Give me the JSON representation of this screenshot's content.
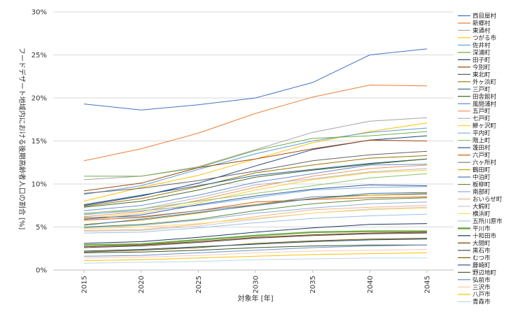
{
  "chart_data": {
    "type": "line",
    "title": "",
    "xlabel": "対象年 [年]",
    "ylabel": "フードデザート地域内における後期高齢者人口の割合 [%]",
    "x": [
      "2015",
      "2020",
      "2025",
      "2030",
      "2035",
      "2040",
      "2045"
    ],
    "ylim": [
      0,
      30
    ],
    "yticks": [
      "0%",
      "5%",
      "10%",
      "15%",
      "20%",
      "25%",
      "30%"
    ],
    "grid": "horizontal",
    "legend_position": "right",
    "series": [
      {
        "name": "西目屋村",
        "color": "#4472c4",
        "values": [
          19.3,
          18.6,
          19.2,
          20.0,
          21.8,
          25.0,
          25.7
        ]
      },
      {
        "name": "新郷村",
        "color": "#ed7d31",
        "values": [
          12.7,
          14.1,
          15.9,
          18.2,
          20.1,
          21.5,
          21.4
        ]
      },
      {
        "name": "東通村",
        "color": "#a5a5a5",
        "values": [
          10.5,
          10.9,
          12.0,
          14.0,
          16.0,
          17.3,
          17.7
        ]
      },
      {
        "name": "つがる市",
        "color": "#ffc000",
        "values": [
          8.0,
          9.6,
          11.0,
          12.9,
          14.8,
          16.1,
          17.1
        ]
      },
      {
        "name": "佐井村",
        "color": "#5b9bd5",
        "values": [
          8.8,
          9.8,
          11.7,
          13.5,
          15.0,
          16.0,
          16.5
        ]
      },
      {
        "name": "深浦町",
        "color": "#70ad47",
        "values": [
          10.9,
          10.9,
          11.9,
          13.9,
          15.3,
          15.6,
          16.1
        ]
      },
      {
        "name": "田子町",
        "color": "#264478",
        "values": [
          7.5,
          8.6,
          10.1,
          12.1,
          14.0,
          15.1,
          15.6
        ]
      },
      {
        "name": "今別町",
        "color": "#9e480e",
        "values": [
          9.2,
          10.1,
          11.9,
          12.9,
          14.1,
          15.1,
          15.0
        ]
      },
      {
        "name": "東北町",
        "color": "#636363",
        "values": [
          8.9,
          9.5,
          10.4,
          11.5,
          12.7,
          13.4,
          13.8
        ]
      },
      {
        "name": "外ヶ浜町",
        "color": "#997300",
        "values": [
          7.4,
          8.3,
          9.7,
          11.3,
          12.2,
          13.0,
          13.3
        ]
      },
      {
        "name": "三戸町",
        "color": "#255e91",
        "values": [
          7.6,
          8.7,
          9.8,
          11.0,
          11.7,
          12.4,
          12.9
        ]
      },
      {
        "name": "田舎館村",
        "color": "#43682b",
        "values": [
          7.3,
          8.0,
          9.3,
          10.8,
          11.6,
          12.3,
          12.9
        ]
      },
      {
        "name": "風間浦村",
        "color": "#698ed0",
        "values": [
          6.9,
          7.5,
          8.7,
          10.2,
          11.2,
          12.2,
          12.3
        ]
      },
      {
        "name": "五戸町",
        "color": "#f1975a",
        "values": [
          6.2,
          6.8,
          8.1,
          9.6,
          10.9,
          11.8,
          12.2
        ]
      },
      {
        "name": "七戸町",
        "color": "#b7b7b7",
        "values": [
          6.4,
          7.1,
          8.4,
          9.9,
          10.6,
          11.4,
          11.8
        ]
      },
      {
        "name": "鰺ヶ沢町",
        "color": "#ffcd33",
        "values": [
          6.0,
          6.6,
          7.8,
          9.3,
          10.5,
          11.3,
          11.6
        ]
      },
      {
        "name": "平内町",
        "color": "#7cafdd",
        "values": [
          6.5,
          6.9,
          7.5,
          8.4,
          9.3,
          9.6,
          9.7
        ]
      },
      {
        "name": "階上町",
        "color": "#8cc168",
        "values": [
          6.6,
          7.1,
          8.0,
          8.9,
          9.8,
          10.7,
          11.2
        ]
      },
      {
        "name": "蓬田村",
        "color": "#335aa1",
        "values": [
          5.9,
          6.4,
          7.6,
          8.6,
          9.4,
          9.9,
          9.8
        ]
      },
      {
        "name": "六戸町",
        "color": "#d26012",
        "values": [
          5.8,
          6.1,
          6.9,
          7.9,
          8.2,
          8.4,
          8.5
        ]
      },
      {
        "name": "六ヶ所村",
        "color": "#848484",
        "values": [
          6.1,
          6.2,
          6.9,
          7.6,
          8.5,
          8.7,
          8.8
        ]
      },
      {
        "name": "鶴田町",
        "color": "#cc9a00",
        "values": [
          5.3,
          5.8,
          6.6,
          7.6,
          8.3,
          8.7,
          8.9
        ]
      },
      {
        "name": "中泊町",
        "color": "#2e75b6",
        "values": [
          5.2,
          5.9,
          6.7,
          7.5,
          8.3,
          8.9,
          9.0
        ]
      },
      {
        "name": "板柳町",
        "color": "#5a8a3a",
        "values": [
          5.0,
          5.3,
          5.9,
          6.9,
          7.7,
          8.2,
          8.4
        ]
      },
      {
        "name": "南部町",
        "color": "#8faadc",
        "values": [
          4.9,
          5.2,
          5.8,
          6.6,
          7.2,
          7.7,
          7.9
        ]
      },
      {
        "name": "おいらせ町",
        "color": "#f4b183",
        "values": [
          4.6,
          4.7,
          5.3,
          6.2,
          7.0,
          7.3,
          7.5
        ]
      },
      {
        "name": "大鰐町",
        "color": "#c9c9c9",
        "values": [
          4.5,
          4.6,
          5.1,
          5.9,
          6.6,
          7.1,
          7.3
        ]
      },
      {
        "name": "横浜町",
        "color": "#ffd966",
        "values": [
          4.8,
          5.0,
          5.4,
          6.0,
          6.6,
          7.0,
          7.2
        ]
      },
      {
        "name": "五所川原市",
        "color": "#9dc3e6",
        "values": [
          4.3,
          4.4,
          4.9,
          5.5,
          6.0,
          6.3,
          6.5
        ]
      },
      {
        "name": "平川市",
        "color": "#70ad47",
        "values": [
          2.9,
          3.0,
          3.5,
          4.0,
          4.4,
          4.5,
          4.5
        ]
      },
      {
        "name": "十和田市",
        "color": "#203864",
        "values": [
          3.1,
          3.3,
          3.8,
          4.4,
          4.9,
          5.3,
          5.4
        ]
      },
      {
        "name": "大間町",
        "color": "#843c0c",
        "values": [
          2.7,
          2.9,
          3.3,
          3.8,
          4.1,
          4.3,
          4.4
        ]
      },
      {
        "name": "黒石市",
        "color": "#525252",
        "values": [
          2.6,
          2.8,
          3.2,
          3.7,
          4.0,
          4.2,
          4.3
        ]
      },
      {
        "name": "むつ市",
        "color": "#7f6000",
        "values": [
          2.1,
          2.3,
          2.6,
          3.1,
          3.4,
          3.6,
          3.7
        ]
      },
      {
        "name": "藤崎町",
        "color": "#1f4e79",
        "values": [
          2.2,
          2.4,
          2.7,
          3.0,
          3.3,
          3.5,
          3.6
        ]
      },
      {
        "name": "野辺地町",
        "color": "#375623",
        "values": [
          2.0,
          2.1,
          2.3,
          2.6,
          2.8,
          2.9,
          2.9
        ]
      },
      {
        "name": "弘前市",
        "color": "#6f8fcf",
        "values": [
          1.6,
          1.7,
          2.0,
          2.3,
          2.6,
          2.8,
          2.9
        ]
      },
      {
        "name": "三沢市",
        "color": "#f8cbad",
        "values": [
          1.4,
          1.5,
          1.7,
          2.0,
          2.2,
          2.3,
          2.4
        ]
      },
      {
        "name": "八戸市",
        "color": "#ffc000",
        "values": [
          1.1,
          1.2,
          1.4,
          1.6,
          1.8,
          1.9,
          2.0
        ]
      },
      {
        "name": "青森市",
        "color": "#bdd7ee",
        "values": [
          0.8,
          0.9,
          1.0,
          1.2,
          1.3,
          1.4,
          1.4
        ]
      }
    ]
  }
}
